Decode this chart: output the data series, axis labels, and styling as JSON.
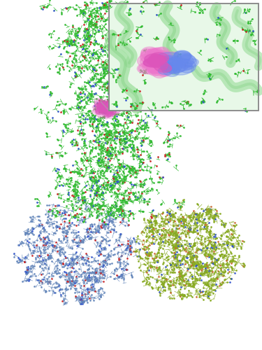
{
  "background_color": "#ffffff",
  "figsize": [
    3.75,
    5.0
  ],
  "dpi": 100,
  "colors": {
    "green_chain": "#33bb33",
    "blue_atom": "#3355cc",
    "red_atom": "#cc2222",
    "olive_chain": "#88aa22",
    "olive_red": "#cc6633",
    "blue_chain": "#6688bb",
    "gray_chain": "#9999bb",
    "pink_ligand": "#dd55bb",
    "pink_surface": "#ee77cc",
    "blue_surface": "#6688ee",
    "inset_bg": "#e8f8e8",
    "helix_color": "#99dd99",
    "helix_edge": "#77cc77",
    "white_bg": "#ffffff"
  },
  "seed": 7
}
